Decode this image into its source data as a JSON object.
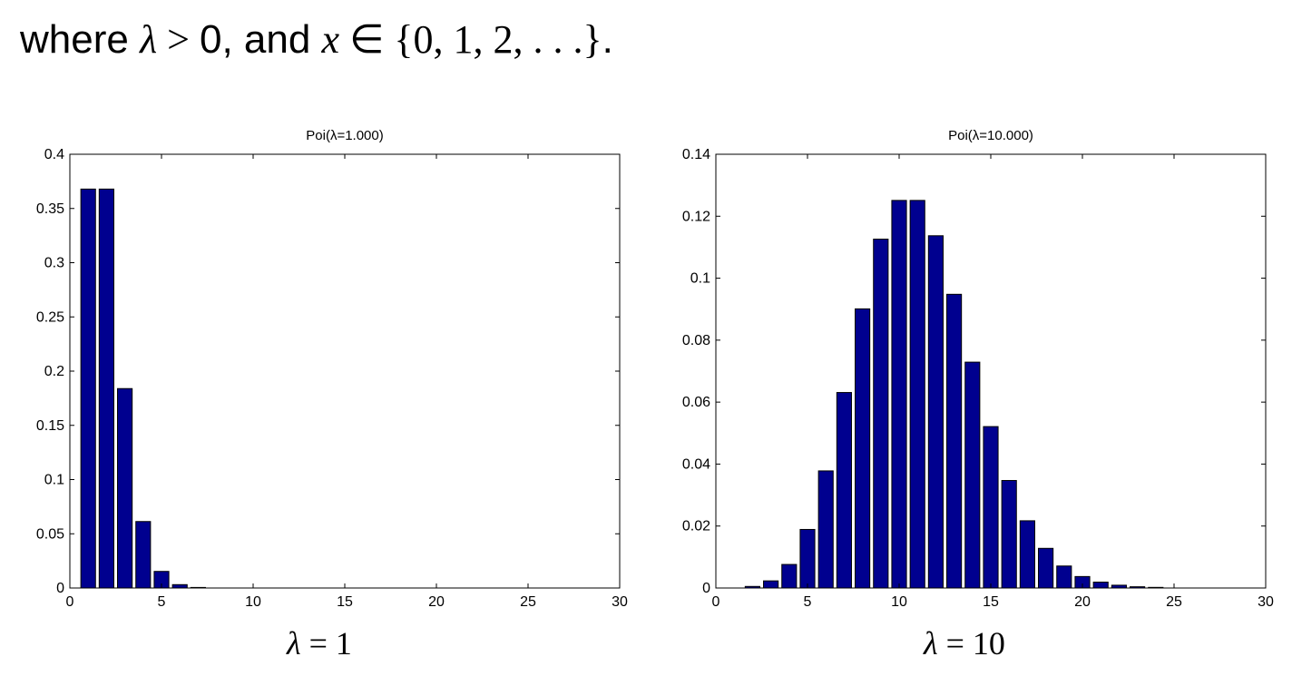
{
  "intro": {
    "text_where": "where ",
    "lambda_symbol": "λ",
    "gt": " > ",
    "zero": "0",
    "text_and": ", and ",
    "x_symbol": "x",
    "in_symbol": " ∈ ",
    "set": "{0, 1, 2, . . .}",
    "period": "."
  },
  "chart_data": [
    {
      "type": "bar",
      "title": "Poi(λ=1.000)",
      "caption_symbol": "λ",
      "caption_rest": " = 1",
      "xlim": [
        0,
        30
      ],
      "ylim": [
        0,
        0.4
      ],
      "xticks": [
        "0",
        "5",
        "10",
        "15",
        "20",
        "25",
        "30"
      ],
      "yticks": [
        "0",
        "0.05",
        "0.1",
        "0.15",
        "0.2",
        "0.25",
        "0.3",
        "0.35",
        "0.4"
      ],
      "x": [
        1,
        2,
        3,
        4,
        5,
        6,
        7,
        8,
        9,
        10,
        11,
        12,
        13,
        14,
        15,
        16,
        17,
        18,
        19,
        20,
        21,
        22,
        23,
        24,
        25,
        26,
        27,
        28,
        29
      ],
      "values": [
        0.3679,
        0.3679,
        0.1839,
        0.0613,
        0.0153,
        0.0031,
        0.0005,
        0.0001,
        0,
        0,
        0,
        0,
        0,
        0,
        0,
        0,
        0,
        0,
        0,
        0,
        0,
        0,
        0,
        0,
        0,
        0,
        0,
        0,
        0
      ],
      "bar_color": "#00008f",
      "grid": false
    },
    {
      "type": "bar",
      "title": "Poi(λ=10.000)",
      "caption_symbol": "λ",
      "caption_rest": " = 10",
      "xlim": [
        0,
        30
      ],
      "ylim": [
        0,
        0.14
      ],
      "xticks": [
        "0",
        "5",
        "10",
        "15",
        "20",
        "25",
        "30"
      ],
      "yticks": [
        "0",
        "0.02",
        "0.04",
        "0.06",
        "0.08",
        "0.1",
        "0.12",
        "0.14"
      ],
      "x": [
        1,
        2,
        3,
        4,
        5,
        6,
        7,
        8,
        9,
        10,
        11,
        12,
        13,
        14,
        15,
        16,
        17,
        18,
        19,
        20,
        21,
        22,
        23,
        24,
        25,
        26,
        27,
        28,
        29
      ],
      "values": [
        0.0,
        0.0005,
        0.0023,
        0.0076,
        0.0189,
        0.0378,
        0.0631,
        0.0901,
        0.1126,
        0.1251,
        0.1251,
        0.1137,
        0.0948,
        0.0729,
        0.0521,
        0.0347,
        0.0217,
        0.0128,
        0.0071,
        0.0037,
        0.0019,
        0.0009,
        0.0004,
        0.0002,
        0.0001,
        0,
        0,
        0,
        0
      ],
      "bar_color": "#00008f",
      "grid": false
    }
  ]
}
